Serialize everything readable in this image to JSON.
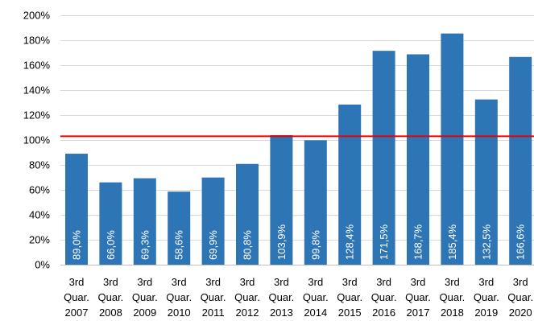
{
  "chart_data": {
    "type": "bar",
    "categories": [
      [
        "3rd",
        "Quar.",
        "2007"
      ],
      [
        "3rd",
        "Quar.",
        "2008"
      ],
      [
        "3rd",
        "Quar.",
        "2009"
      ],
      [
        "3rd",
        "Quar.",
        "2010"
      ],
      [
        "3rd",
        "Quar.",
        "2011"
      ],
      [
        "3rd",
        "Quar.",
        "2012"
      ],
      [
        "3rd",
        "Quar.",
        "2013"
      ],
      [
        "3rd",
        "Quar.",
        "2014"
      ],
      [
        "3rd",
        "Quar.",
        "2015"
      ],
      [
        "3rd",
        "Quar.",
        "2016"
      ],
      [
        "3rd",
        "Quar.",
        "2017"
      ],
      [
        "3rd",
        "Quar.",
        "2018"
      ],
      [
        "3rd",
        "Quar.",
        "2019"
      ],
      [
        "3rd",
        "Quar.",
        "2020"
      ]
    ],
    "values": [
      89.0,
      66.0,
      69.3,
      58.6,
      69.9,
      80.8,
      103.9,
      99.8,
      128.4,
      171.5,
      168.7,
      185.4,
      132.5,
      166.6
    ],
    "data_labels": [
      "89,0%",
      "66,0%",
      "69,3%",
      "58,6%",
      "69,9%",
      "80,8%",
      "103,9%",
      "99,8%",
      "128,4%",
      "171,5%",
      "168,7%",
      "185,4%",
      "132,5%",
      "166,6%"
    ],
    "y_ticks": [
      0,
      20,
      40,
      60,
      80,
      100,
      120,
      140,
      160,
      180,
      200
    ],
    "y_tick_labels": [
      "0%",
      "20%",
      "40%",
      "60%",
      "80%",
      "100%",
      "120%",
      "140%",
      "160%",
      "180%",
      "200%"
    ],
    "ylim": [
      0,
      200
    ],
    "reference_line": 103,
    "grid": true,
    "colors": {
      "bar": "#2e75b6",
      "reference_line": "#e60000",
      "grid": "#d9d9d9"
    }
  }
}
